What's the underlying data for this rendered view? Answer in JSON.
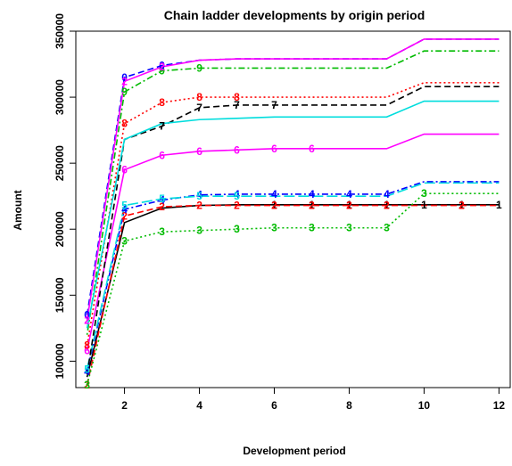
{
  "chart_data": {
    "type": "line",
    "title": "Chain ladder developments by origin period",
    "xlabel": "Development period",
    "ylabel": "Amount",
    "xlim": [
      0.7,
      12.3
    ],
    "ylim": [
      80000,
      350000
    ],
    "x_ticks": [
      2,
      4,
      6,
      8,
      10,
      12
    ],
    "y_ticks": [
      100000,
      150000,
      200000,
      250000,
      300000,
      350000
    ],
    "grid": false,
    "legend": "none",
    "series": [
      {
        "name": "1",
        "color": "#000000",
        "dash": "solid",
        "x": [
          1,
          2,
          3,
          4,
          5,
          6,
          7,
          8,
          9,
          10,
          11,
          12
        ],
        "y": [
          88000,
          205000,
          216000,
          218000,
          218500,
          218500,
          218500,
          218500,
          218500,
          218500,
          218500,
          218500
        ]
      },
      {
        "name": "2",
        "color": "#ff0000",
        "dash": "dashed",
        "x": [
          1,
          2,
          3,
          4,
          5,
          6,
          7,
          8,
          9,
          10,
          11,
          12
        ],
        "y": [
          82000,
          210000,
          217000,
          218000,
          218000,
          218000,
          218000,
          218000,
          218000,
          218000,
          218000,
          218000
        ]
      },
      {
        "name": "3",
        "color": "#00bb00",
        "dash": "dotted",
        "x": [
          1,
          2,
          3,
          4,
          5,
          6,
          7,
          8,
          9,
          10,
          11,
          12
        ],
        "y": [
          82000,
          191000,
          198000,
          199000,
          200000,
          201000,
          201000,
          201000,
          201000,
          227000,
          227000,
          227000
        ]
      },
      {
        "name": "4",
        "color": "#0000ff",
        "dash": "dotdash",
        "x": [
          1,
          2,
          3,
          4,
          5,
          6,
          7,
          8,
          9,
          10,
          11,
          12
        ],
        "y": [
          92000,
          215000,
          222000,
          226000,
          226500,
          226500,
          226500,
          226500,
          226500,
          236000,
          236000,
          236000
        ]
      },
      {
        "name": "5",
        "color": "#00dddd",
        "dash": "longdash",
        "x": [
          1,
          2,
          3,
          4,
          5,
          6,
          7,
          8,
          9,
          10,
          11,
          12
        ],
        "y": [
          94000,
          218000,
          223000,
          225000,
          225000,
          225000,
          225000,
          225000,
          225000,
          235000,
          235000,
          235000
        ]
      },
      {
        "name": "6",
        "color": "#ff00ff",
        "dash": "solid",
        "x": [
          1,
          2,
          3,
          4,
          5,
          6,
          7,
          8,
          9,
          10,
          11,
          12
        ],
        "y": [
          108000,
          245000,
          256000,
          259000,
          260000,
          261000,
          261000,
          261000,
          261000,
          272000,
          272000,
          272000
        ]
      },
      {
        "name": "7",
        "color": "#000000",
        "dash": "dashed",
        "x": [
          1,
          2,
          3,
          4,
          5,
          6,
          7,
          8,
          9,
          10,
          11,
          12
        ],
        "y": [
          90000,
          268000,
          278000,
          292000,
          294000,
          294000,
          294000,
          294000,
          294000,
          308000,
          308000,
          308000
        ]
      },
      {
        "name": "8",
        "color": "#ff0000",
        "dash": "dotted",
        "x": [
          1,
          2,
          3,
          4,
          5,
          6,
          7,
          8,
          9,
          10,
          11,
          12
        ],
        "y": [
          112000,
          280000,
          296000,
          300000,
          300000,
          300000,
          300000,
          300000,
          300000,
          311000,
          311000,
          311000
        ]
      },
      {
        "name": "9",
        "color": "#00bb00",
        "dash": "dotdash",
        "x": [
          1,
          2,
          3,
          4,
          5,
          6,
          7,
          8,
          9,
          10,
          11,
          12
        ],
        "y": [
          120000,
          304000,
          320000,
          322000,
          322000,
          322000,
          322000,
          322000,
          322000,
          335000,
          335000,
          335000
        ]
      },
      {
        "name": "10",
        "color": "#0000ff",
        "dash": "dashed",
        "x": [
          1,
          2,
          3,
          4,
          5,
          6,
          7,
          8,
          9,
          10,
          11,
          12
        ],
        "y": [
          135000,
          315000,
          324000,
          328000,
          329000,
          329000,
          329000,
          329000,
          329000,
          344000,
          344000,
          344000
        ]
      },
      {
        "name": "11",
        "color": "#00dddd",
        "dash": "solid",
        "x": [
          1,
          2,
          3,
          4,
          5,
          6,
          7,
          8,
          9,
          10,
          11,
          12
        ],
        "y": [
          125000,
          268000,
          280000,
          283000,
          284000,
          285000,
          285000,
          285000,
          285000,
          297000,
          297000,
          297000
        ]
      },
      {
        "name": "12",
        "color": "#ff00ff",
        "dash": "solid",
        "x": [
          1,
          2,
          3,
          4,
          5,
          6,
          7,
          8,
          9,
          10,
          11,
          12
        ],
        "y": [
          131000,
          312000,
          323000,
          328000,
          329000,
          329000,
          329000,
          329000,
          329000,
          344000,
          344000,
          344000
        ]
      }
    ],
    "point_labels": [
      {
        "series": "1",
        "text": "1",
        "x": [
          6,
          7,
          8,
          9,
          10,
          11,
          12
        ]
      },
      {
        "series": "2",
        "text": "2",
        "x": [
          1,
          2,
          3,
          4,
          5,
          6,
          7,
          8,
          9,
          11
        ]
      },
      {
        "series": "3",
        "text": "3",
        "x": [
          1,
          2,
          3,
          4,
          5,
          6,
          7,
          8,
          9,
          10
        ]
      },
      {
        "series": "4",
        "text": "4",
        "x": [
          1,
          2,
          3,
          4,
          5,
          6,
          7,
          8,
          9
        ]
      },
      {
        "series": "5",
        "text": "5",
        "x": [
          1,
          2,
          3,
          4,
          5
        ]
      },
      {
        "series": "6",
        "text": "6",
        "x": [
          1,
          2,
          3,
          4,
          5,
          6,
          7
        ]
      },
      {
        "series": "7",
        "text": "7",
        "x": [
          3,
          4,
          5,
          6
        ]
      },
      {
        "series": "8",
        "text": "8",
        "x": [
          1,
          2,
          3,
          4,
          5
        ]
      },
      {
        "series": "9",
        "text": "9",
        "x": [
          2,
          3,
          4
        ]
      },
      {
        "series": "10",
        "text": "0",
        "x": [
          1,
          2,
          3
        ]
      },
      {
        "series": "12",
        "text": "2",
        "x": [
          1,
          2,
          3
        ]
      }
    ]
  }
}
